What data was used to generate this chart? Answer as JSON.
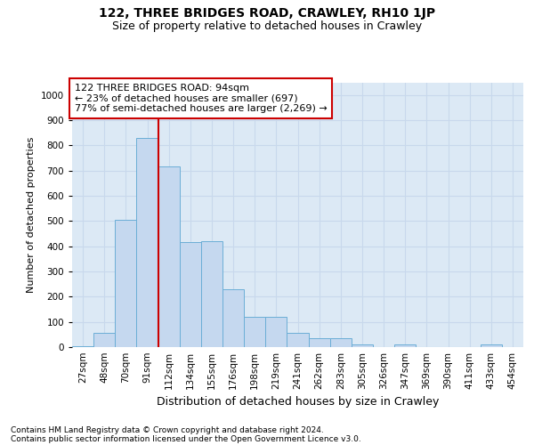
{
  "title1": "122, THREE BRIDGES ROAD, CRAWLEY, RH10 1JP",
  "title2": "Size of property relative to detached houses in Crawley",
  "xlabel": "Distribution of detached houses by size in Crawley",
  "ylabel": "Number of detached properties",
  "footnote1": "Contains HM Land Registry data © Crown copyright and database right 2024.",
  "footnote2": "Contains public sector information licensed under the Open Government Licence v3.0.",
  "bar_labels": [
    "27sqm",
    "48sqm",
    "70sqm",
    "91sqm",
    "112sqm",
    "134sqm",
    "155sqm",
    "176sqm",
    "198sqm",
    "219sqm",
    "241sqm",
    "262sqm",
    "283sqm",
    "305sqm",
    "326sqm",
    "347sqm",
    "369sqm",
    "390sqm",
    "411sqm",
    "433sqm",
    "454sqm"
  ],
  "bar_values": [
    5,
    55,
    505,
    830,
    715,
    415,
    420,
    230,
    120,
    120,
    57,
    35,
    35,
    12,
    0,
    12,
    0,
    0,
    0,
    12,
    0
  ],
  "bar_color": "#c5d8ef",
  "bar_edge_color": "#6baed6",
  "property_line_x": 3.5,
  "annotation_text": "122 THREE BRIDGES ROAD: 94sqm\n← 23% of detached houses are smaller (697)\n77% of semi-detached houses are larger (2,269) →",
  "annotation_box_edge_color": "#cc0000",
  "ylim": [
    0,
    1050
  ],
  "yticks": [
    0,
    100,
    200,
    300,
    400,
    500,
    600,
    700,
    800,
    900,
    1000
  ],
  "grid_color": "#c8d8ec",
  "bg_color": "#dce9f5",
  "title1_fontsize": 10,
  "title2_fontsize": 9,
  "annot_fontsize": 8,
  "ylabel_fontsize": 8,
  "xlabel_fontsize": 9,
  "tick_fontsize": 7.5,
  "footnote_fontsize": 6.5
}
